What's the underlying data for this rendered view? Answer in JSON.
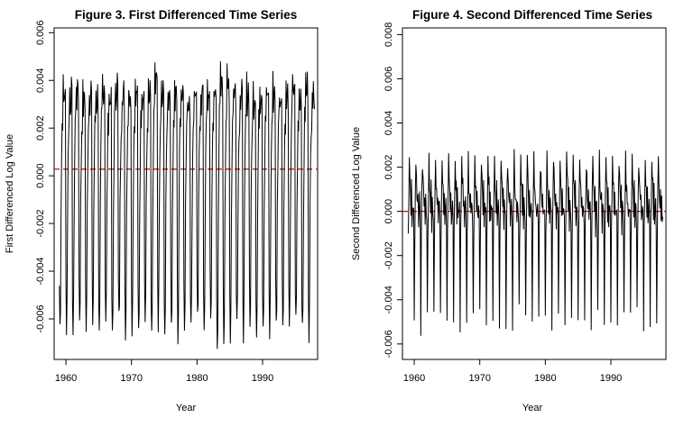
{
  "chart_data": [
    {
      "type": "line",
      "title": "Figure 3. First Differenced Time Series",
      "xlabel": "Year",
      "ylabel": "First Differenced Log Value",
      "xlim": [
        1958.2,
        1998.4
      ],
      "ylim": [
        -0.0077,
        0.0062
      ],
      "xticks": [
        1960,
        1970,
        1980,
        1990
      ],
      "yticks": [
        -0.006,
        -0.004,
        -0.002,
        0.0,
        0.002,
        0.004,
        0.006
      ],
      "ytick_labels": [
        "-0.006",
        "-0.004",
        "-0.002",
        "0.000",
        "0.002",
        "0.004",
        "0.006"
      ],
      "reference_line": {
        "y": 0.00028,
        "style": "dashed",
        "color": "#dd0000"
      },
      "series_color": "#000000",
      "series": [
        {
          "x_start": 1959.0,
          "x_step": 0.08333,
          "cycle_values": [
            -0.0046,
            -0.0063,
            -0.0053,
            -0.0015,
            0.0007,
            0.0022,
            0.0024,
            0.0038,
            0.003,
            0.0033,
            0.0037,
            0.0033
          ],
          "n_cycles": 39,
          "cycle_scale": [
            1.0,
            0.98,
            1.05,
            0.93,
            1.02,
            0.96,
            1.08,
            0.95,
            1.1,
            0.97,
            1.01,
            0.99,
            1.04,
            0.95,
            1.12,
            0.96,
            1.03,
            0.98,
            1.06,
            0.94,
            1.02,
            0.99,
            1.0,
            0.97,
            1.13,
            1.09,
            1.05,
            0.95,
            1.02,
            0.98,
            1.03,
            0.97,
            1.04,
            1.0,
            0.96,
            1.06,
            0.98,
            1.07,
            1.02
          ]
        }
      ]
    },
    {
      "type": "line",
      "title": "Figure 4. Second Differenced Time Series",
      "xlabel": "Year",
      "ylabel": "Second Differenced Log Value",
      "xlim": [
        1958.2,
        1998.4
      ],
      "ylim": [
        -0.0067,
        0.0083
      ],
      "xticks": [
        1960,
        1970,
        1980,
        1990
      ],
      "yticks": [
        -0.006,
        -0.004,
        -0.002,
        0.0,
        0.002,
        0.004,
        0.006,
        0.008
      ],
      "ytick_labels": [
        "-0.006",
        "-0.004",
        "-0.002",
        "0.000",
        "0.002",
        "0.004",
        "0.006",
        "0.008"
      ],
      "reference_line": {
        "y": 0.0,
        "style": "dashed",
        "color": "#dd0000"
      },
      "series_color": "#000000",
      "derived_from": "second difference of Figure 3 series",
      "series": [
        {
          "x_start": 1959.08,
          "x_step": 0.08333,
          "second_difference": true
        }
      ]
    }
  ]
}
